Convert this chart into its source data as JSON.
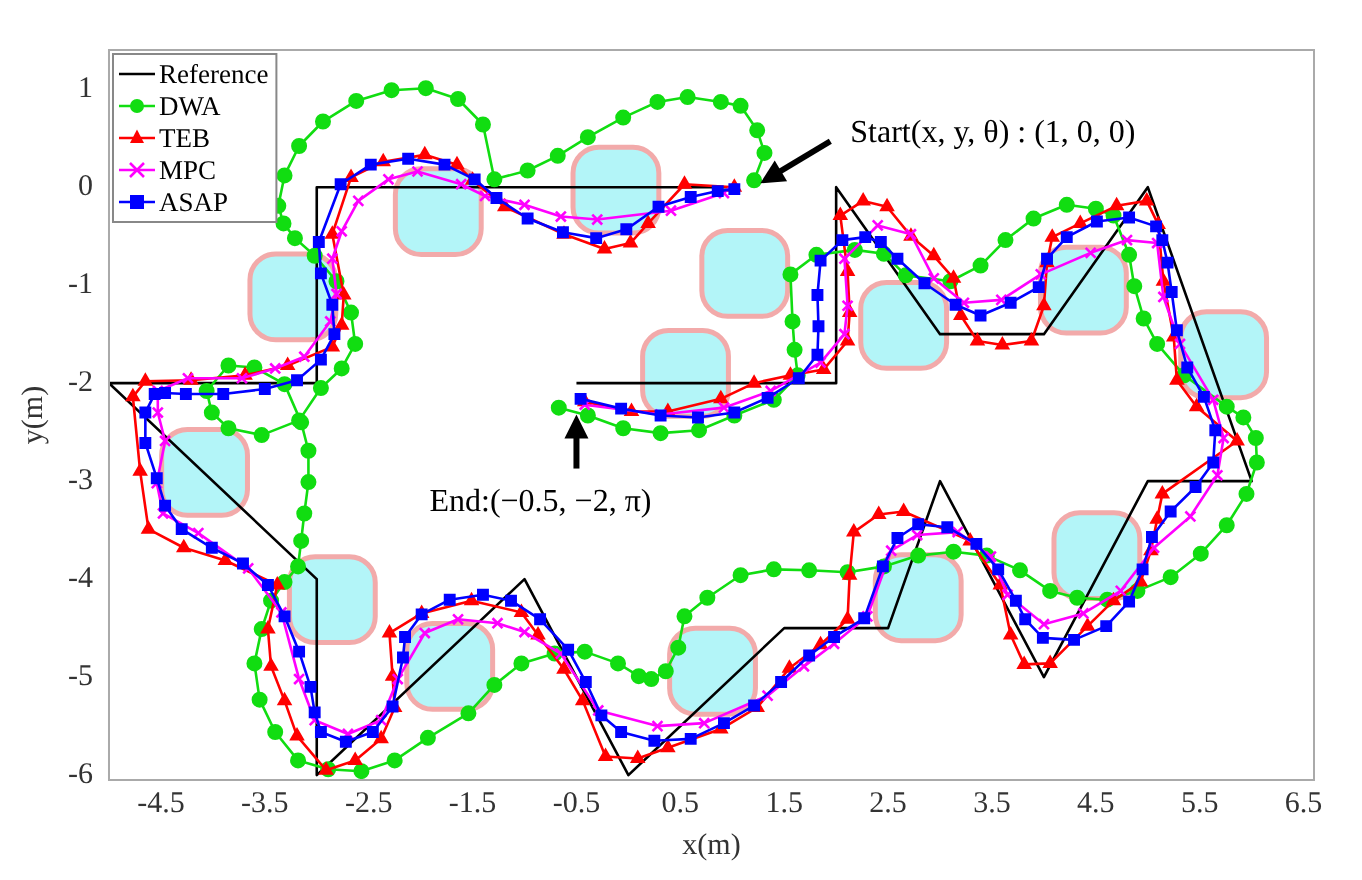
{
  "chart_data": {
    "type": "line",
    "xlabel": "x(m)",
    "ylabel": "y(m)",
    "xlim": [
      -5,
      6.6
    ],
    "ylim": [
      -6.05,
      1.4
    ],
    "xticks": [
      -4.5,
      -3.5,
      -2.5,
      -1.5,
      -0.5,
      0.5,
      1.5,
      2.5,
      3.5,
      4.5,
      5.5,
      6.5
    ],
    "yticks": [
      1,
      0,
      -1,
      -2,
      -3,
      -4,
      -5,
      -6
    ],
    "grid": false,
    "legend": "top left",
    "annotations": [
      {
        "text": "Start(x, y, θ) : (1, 0, 0)",
        "x": 1.27,
        "y": 0.04
      },
      {
        "text": "End:(−0.5, −2, π)",
        "x": -0.5,
        "y": -2.3
      }
    ],
    "series": [
      {
        "type": "scatter",
        "color": "#b3f5f8",
        "marker": "square",
        "x": [
          -1.83,
          -0.12,
          1.12,
          -3.23,
          0.55,
          2.65,
          4.38,
          5.73,
          -4.08,
          -2.85,
          -1.72,
          0.81,
          2.79,
          4.51
        ],
        "values": [
          -0.25,
          -0.03,
          -0.88,
          -1.12,
          -1.9,
          -1.41,
          -1.05,
          -1.71,
          -2.91,
          -4.21,
          -4.89,
          -4.94,
          -4.19,
          -3.76
        ]
      },
      {
        "name": "Reference",
        "color": "#000000",
        "marker": "none",
        "x": [
          1,
          -3,
          -3,
          -5,
          -3,
          -3,
          -1,
          0,
          1.5,
          2.5,
          3,
          4,
          5,
          6,
          5,
          4,
          3,
          2,
          2,
          -0.5
        ],
        "values": [
          0,
          0,
          -2,
          -2,
          -4,
          -6,
          -4,
          -6,
          -4.5,
          -4.5,
          -3,
          -5,
          -3,
          -3,
          0,
          -1.5,
          -1.5,
          0,
          -2,
          -2
        ]
      },
      {
        "name": "DWA",
        "color": "#11dd11",
        "marker": "circle",
        "x": [
          1.21,
          1.31,
          1.24,
          1.08,
          0.89,
          0.57,
          0.28,
          -0.05,
          -0.39,
          -0.68,
          -0.97,
          -1.29,
          -1.4,
          -1.64,
          -1.95,
          -2.28,
          -2.62,
          -2.94,
          -3.17,
          -3.31,
          -3.37,
          -3.32,
          -3.21,
          -3.02,
          -2.81,
          -2.67,
          -2.63,
          -2.76,
          -2.96,
          -3.17,
          -3.53,
          -3.85,
          -4.01,
          -4.06,
          -3.85,
          -3.6,
          -3.31,
          -3.15,
          -3.08,
          -3.08,
          -3.12,
          -3.15,
          -3.18,
          -3.31,
          -3.44,
          -3.53,
          -3.6,
          -3.55,
          -3.4,
          -3.18,
          -2.89,
          -2.57,
          -2.25,
          -1.93,
          -1.54,
          -1.29,
          -1.03,
          -0.71,
          -0.42,
          -0.1,
          0.1,
          0.22,
          0.36,
          0.48,
          0.54,
          0.76,
          1.08,
          1.4,
          1.74,
          2.11,
          2.46,
          2.79,
          3.13,
          3.45,
          3.77,
          4.06,
          4.32,
          4.61,
          4.9,
          5.22,
          5.51,
          5.76,
          5.95,
          6.05,
          6.04,
          5.92,
          5.76,
          5.35,
          5.09,
          4.96,
          4.87,
          4.82,
          4.67,
          4.5,
          4.22,
          3.9,
          3.63,
          3.39,
          3.1,
          2.67,
          2.46,
          2.18,
          1.81,
          1.56,
          1.58,
          1.6,
          1.63,
          1.4,
          1.02,
          0.68,
          0.31,
          -0.05,
          -0.39,
          -0.67
        ],
        "values": [
          0.07,
          0.35,
          0.58,
          0.83,
          0.87,
          0.92,
          0.87,
          0.71,
          0.51,
          0.32,
          0.17,
          0.08,
          0.64,
          0.9,
          1.01,
          0.99,
          0.88,
          0.67,
          0.42,
          0.12,
          -0.19,
          -0.37,
          -0.52,
          -0.7,
          -0.96,
          -1.28,
          -1.6,
          -1.85,
          -2.05,
          -2.38,
          -2.53,
          -2.46,
          -2.3,
          -2.08,
          -1.82,
          -1.84,
          -2.01,
          -2.4,
          -2.69,
          -3.01,
          -3.33,
          -3.61,
          -3.87,
          -4.03,
          -4.22,
          -4.51,
          -4.86,
          -5.23,
          -5.56,
          -5.85,
          -5.94,
          -5.96,
          -5.85,
          -5.62,
          -5.37,
          -5.08,
          -4.86,
          -4.76,
          -4.74,
          -4.86,
          -4.99,
          -5.02,
          -4.94,
          -4.7,
          -4.38,
          -4.19,
          -3.96,
          -3.9,
          -3.91,
          -3.93,
          -3.87,
          -3.76,
          -3.72,
          -3.76,
          -3.91,
          -4.12,
          -4.19,
          -4.21,
          -4.12,
          -3.98,
          -3.74,
          -3.45,
          -3.13,
          -2.81,
          -2.56,
          -2.35,
          -2.24,
          -1.92,
          -1.6,
          -1.34,
          -1.01,
          -0.69,
          -0.29,
          -0.22,
          -0.18,
          -0.32,
          -0.54,
          -0.8,
          -0.96,
          -0.9,
          -0.68,
          -0.64,
          -0.69,
          -0.89,
          -1.37,
          -1.66,
          -1.92,
          -2.17,
          -2.33,
          -2.48,
          -2.51,
          -2.46,
          -2.33,
          -2.25
        ]
      },
      {
        "name": "TEB",
        "color": "#ff0000",
        "marker": "triangle",
        "x": [
          1.02,
          0.54,
          0.19,
          0.02,
          -0.23,
          -0.62,
          -1.19,
          -1.5,
          -1.65,
          -1.96,
          -2.36,
          -2.67,
          -2.85,
          -2.74,
          -2.76,
          -2.85,
          -3.28,
          -3.69,
          -4.21,
          -4.65,
          -4.77,
          -4.7,
          -4.62,
          -4.28,
          -3.88,
          -3.38,
          -3.47,
          -3.44,
          -3.31,
          -3.19,
          -2.91,
          -2.63,
          -2.38,
          -2.25,
          -2.27,
          -2.3,
          -1.99,
          -1.51,
          -1.03,
          -0.87,
          -0.62,
          -0.44,
          -0.22,
          0.09,
          0.38,
          0.89,
          1.24,
          1.55,
          1.85,
          2.11,
          2.13,
          2.17,
          2.41,
          2.65,
          3.29,
          3.58,
          3.68,
          3.81,
          4.06,
          4.42,
          4.67,
          4.93,
          5.03,
          5.09,
          5.14,
          5.86,
          5.47,
          5.28,
          5.25,
          5.15,
          5.1,
          4.99,
          4.7,
          4.35,
          4.08,
          4.03,
          4.0,
          3.88,
          3.6,
          3.36,
          3.2,
          3.13,
          2.94,
          2.72,
          2.49,
          2.26,
          2.04,
          2.11,
          2.13,
          2.11,
          1.88,
          1.56,
          1.21,
          0.89,
          0.38,
          0.03,
          -0.42
        ],
        "values": [
          0.0,
          0.03,
          -0.37,
          -0.57,
          -0.63,
          -0.48,
          -0.2,
          0.07,
          0.23,
          0.33,
          0.26,
          0.1,
          -0.48,
          -1.1,
          -1.41,
          -1.63,
          -1.82,
          -1.92,
          -1.97,
          -1.98,
          -2.14,
          -2.9,
          -3.49,
          -3.68,
          -3.81,
          -4.06,
          -4.51,
          -4.89,
          -5.24,
          -5.6,
          -5.95,
          -5.85,
          -5.63,
          -5.31,
          -4.99,
          -4.55,
          -4.35,
          -4.22,
          -4.34,
          -4.57,
          -4.92,
          -5.24,
          -5.81,
          -5.83,
          -5.72,
          -5.53,
          -5.31,
          -4.91,
          -4.67,
          -4.41,
          -3.96,
          -3.52,
          -3.34,
          -3.31,
          -3.61,
          -4.06,
          -4.57,
          -4.87,
          -4.86,
          -4.48,
          -4.22,
          -4.03,
          -3.71,
          -3.39,
          -3.13,
          -2.59,
          -2.24,
          -1.97,
          -1.53,
          -0.96,
          -0.38,
          -0.14,
          -0.19,
          -0.37,
          -0.51,
          -0.77,
          -1.21,
          -1.57,
          -1.61,
          -1.57,
          -1.31,
          -0.93,
          -0.7,
          -0.5,
          -0.2,
          -0.14,
          -0.29,
          -0.86,
          -1.28,
          -1.57,
          -1.86,
          -1.92,
          -2.0,
          -2.16,
          -2.29,
          -2.29,
          -2.19
        ]
      },
      {
        "name": "MPC",
        "color": "#ff00ff",
        "marker": "cross",
        "x": [
          0.92,
          0.41,
          -0.3,
          -0.65,
          -1.0,
          -1.38,
          -1.61,
          -2.03,
          -2.31,
          -2.6,
          -2.76,
          -2.85,
          -2.81,
          -2.87,
          -3.12,
          -3.4,
          -3.72,
          -4.24,
          -4.53,
          -4.53,
          -4.46,
          -4.54,
          -4.48,
          -4.14,
          -3.66,
          -3.34,
          -3.17,
          -3.02,
          -2.7,
          -2.38,
          -2.22,
          -1.96,
          -1.64,
          -1.26,
          -1.0,
          -0.65,
          -0.29,
          0.28,
          0.73,
          1.34,
          1.69,
          1.98,
          2.3,
          2.53,
          2.78,
          3.17,
          3.49,
          3.65,
          4.0,
          4.38,
          4.74,
          5.06,
          5.41,
          5.67,
          5.73,
          5.63,
          5.31,
          5.15,
          5.09,
          4.8,
          4.45,
          3.97,
          3.59,
          3.23,
          2.94,
          2.72,
          2.4,
          2.08,
          2.11,
          2.08,
          1.85,
          1.37,
          0.92,
          0.31,
          -0.42
        ],
        "values": [
          -0.06,
          -0.24,
          -0.33,
          -0.3,
          -0.18,
          -0.09,
          0.03,
          0.16,
          0.08,
          -0.14,
          -0.45,
          -0.73,
          -1.09,
          -1.37,
          -1.73,
          -1.85,
          -1.95,
          -1.95,
          -2.08,
          -2.3,
          -2.59,
          -3.02,
          -3.33,
          -3.53,
          -3.89,
          -4.34,
          -5.02,
          -5.44,
          -5.58,
          -5.44,
          -5.02,
          -4.55,
          -4.41,
          -4.45,
          -4.54,
          -4.76,
          -5.34,
          -5.5,
          -5.47,
          -5.19,
          -4.89,
          -4.66,
          -4.38,
          -3.71,
          -3.55,
          -3.52,
          -3.77,
          -4.16,
          -4.46,
          -4.35,
          -4.12,
          -3.68,
          -3.36,
          -2.94,
          -2.56,
          -2.17,
          -1.6,
          -1.12,
          -0.57,
          -0.54,
          -0.67,
          -0.89,
          -1.15,
          -1.18,
          -0.93,
          -0.48,
          -0.39,
          -0.73,
          -1.21,
          -1.5,
          -1.79,
          -2.08,
          -2.25,
          -2.32,
          -2.22
        ]
      },
      {
        "name": "ASAP",
        "color": "#0000ff",
        "marker": "square",
        "x": [
          1.02,
          0.86,
          0.6,
          0.29,
          -0.02,
          -0.31,
          -0.63,
          -0.97,
          -1.27,
          -1.48,
          -1.77,
          -2.12,
          -2.48,
          -2.77,
          -2.98,
          -2.96,
          -2.85,
          -2.83,
          -2.96,
          -3.19,
          -3.5,
          -3.9,
          -4.26,
          -4.46,
          -4.56,
          -4.65,
          -4.65,
          -4.54,
          -4.46,
          -4.3,
          -4.01,
          -3.71,
          -3.47,
          -3.31,
          -3.17,
          -3.06,
          -3.02,
          -2.96,
          -2.72,
          -2.46,
          -2.27,
          -2.17,
          -2.15,
          -1.99,
          -1.72,
          -1.4,
          -1.13,
          -0.85,
          -0.58,
          -0.41,
          -0.26,
          -0.07,
          0.25,
          0.6,
          0.92,
          1.21,
          1.47,
          1.74,
          1.98,
          2.27,
          2.45,
          2.59,
          2.79,
          3.07,
          3.35,
          3.56,
          3.73,
          3.82,
          3.99,
          4.29,
          4.6,
          4.82,
          4.95,
          5.04,
          5.22,
          5.46,
          5.63,
          5.65,
          5.54,
          5.38,
          5.28,
          5.23,
          5.19,
          5.14,
          5.08,
          4.82,
          4.51,
          4.22,
          4.03,
          3.95,
          3.68,
          3.39,
          3.15,
          2.85,
          2.59,
          2.43,
          2.28,
          2.06,
          1.85,
          1.82,
          1.83,
          1.82,
          1.64,
          1.34,
          1.02,
          0.67,
          0.31,
          -0.07,
          -0.46
        ],
        "values": [
          -0.02,
          -0.04,
          -0.1,
          -0.2,
          -0.43,
          -0.52,
          -0.46,
          -0.32,
          -0.11,
          0.08,
          0.23,
          0.29,
          0.23,
          0.03,
          -0.56,
          -0.88,
          -1.2,
          -1.5,
          -1.76,
          -1.97,
          -2.06,
          -2.11,
          -2.11,
          -2.1,
          -2.11,
          -2.3,
          -2.61,
          -2.97,
          -3.25,
          -3.49,
          -3.68,
          -3.84,
          -4.06,
          -4.38,
          -4.74,
          -5.1,
          -5.36,
          -5.56,
          -5.66,
          -5.56,
          -5.3,
          -4.8,
          -4.59,
          -4.36,
          -4.21,
          -4.16,
          -4.22,
          -4.41,
          -4.72,
          -5.05,
          -5.39,
          -5.56,
          -5.65,
          -5.63,
          -5.47,
          -5.29,
          -5.05,
          -4.78,
          -4.59,
          -4.4,
          -3.87,
          -3.58,
          -3.44,
          -3.47,
          -3.64,
          -3.9,
          -4.22,
          -4.41,
          -4.6,
          -4.62,
          -4.48,
          -4.23,
          -3.9,
          -3.57,
          -3.31,
          -3.06,
          -2.81,
          -2.48,
          -2.14,
          -1.84,
          -1.46,
          -1.07,
          -0.77,
          -0.54,
          -0.4,
          -0.31,
          -0.35,
          -0.51,
          -0.73,
          -1.02,
          -1.18,
          -1.31,
          -1.2,
          -0.98,
          -0.73,
          -0.56,
          -0.51,
          -0.54,
          -0.75,
          -1.1,
          -1.42,
          -1.71,
          -1.95,
          -2.15,
          -2.3,
          -2.35,
          -2.33,
          -2.26,
          -2.16
        ]
      }
    ]
  }
}
